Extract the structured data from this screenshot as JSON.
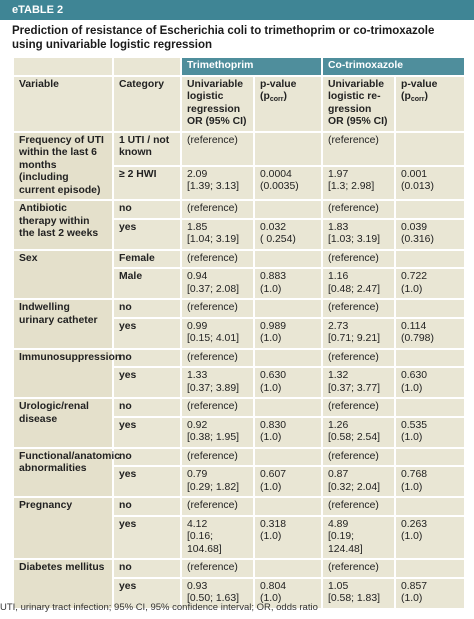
{
  "header": {
    "label": "eTABLE 2",
    "title": "Prediction of resistance of Escherichia coli to trimethoprim or co-trimoxazole using univariable logistic regression"
  },
  "table": {
    "group_headers": [
      "Trimethoprim",
      "Co-trimoxazole"
    ],
    "columns": [
      "Variable",
      "Category",
      "Univariable logistic regression OR (95% CI)",
      {
        "text": "p-value (p",
        "sub": "corr",
        "tail": ")"
      },
      "Univariable logistic re-gression OR (95% CI)",
      {
        "text": "p-value (p",
        "sub": "corr",
        "tail": ")"
      }
    ],
    "groups": [
      {
        "variable": "Frequency of UTI within the last 6 months (including current episode)",
        "rows": [
          [
            "1 UTI / not known",
            "(reference)",
            null,
            "(reference)",
            null
          ],
          [
            "≥ 2 HWI",
            "2.09\n[1.39; 3.13]",
            "0.0004\n(0.0035)",
            "1.97\n[1.3; 2.98]",
            "0.001\n(0.013)"
          ]
        ]
      },
      {
        "variable": "Antibiotic therapy within the last 2 weeks",
        "rows": [
          [
            "no",
            "(reference)",
            null,
            "(reference)",
            null
          ],
          [
            "yes",
            "1.85\n[1.04; 3.19]",
            "0.032\n( 0.254)",
            "1.83\n[1.03; 3.19]",
            "0.039\n(0.316)"
          ]
        ]
      },
      {
        "variable": "Sex",
        "rows": [
          [
            "Female",
            "(reference)",
            null,
            "(reference)",
            null
          ],
          [
            "Male",
            "0.94\n[0.37; 2.08]",
            "0.883\n(1.0)",
            "1.16\n[0.48; 2.47]",
            "0.722\n(1.0)"
          ]
        ]
      },
      {
        "variable": "Indwelling urinary catheter",
        "rows": [
          [
            "no",
            "(reference)",
            null,
            "(reference)",
            null
          ],
          [
            "yes",
            "0.99\n[0.15; 4.01]",
            "0.989\n(1.0)",
            "2.73\n[0.71; 9.21]",
            "0.114\n(0.798)"
          ]
        ]
      },
      {
        "variable": "Immunosuppression",
        "rows": [
          [
            "no",
            "(reference)",
            null,
            "(reference)",
            null
          ],
          [
            "yes",
            "1.33\n[0.37; 3.89]",
            "0.630\n(1.0)",
            "1.32\n[0.37; 3.77]",
            "0.630\n(1.0)"
          ]
        ]
      },
      {
        "variable": "Urologic/renal disease",
        "rows": [
          [
            "no",
            "(reference)",
            null,
            "(reference)",
            null
          ],
          [
            "yes",
            "0.92\n[0.38; 1.95]",
            "0.830\n(1.0)",
            "1.26\n[0.58; 2.54]",
            "0.535\n(1.0)"
          ]
        ]
      },
      {
        "variable": "Functional/anatomic abnormalities",
        "rows": [
          [
            "no",
            "(reference)",
            null,
            "(reference)",
            null
          ],
          [
            "yes",
            "0.79\n[0.29; 1.82]",
            "0.607\n(1.0)",
            "0.87\n[0.32; 2.04]",
            "0.768\n(1.0)"
          ]
        ]
      },
      {
        "variable": "Pregnancy",
        "rows": [
          [
            "no",
            "(reference)",
            null,
            "(reference)",
            null
          ],
          [
            "yes",
            "4.12\n[0.16; 104.68]",
            "0.318\n(1.0)",
            "4.89\n[0.19; 124.48]",
            "0.263\n(1.0)"
          ]
        ]
      },
      {
        "variable": "Diabetes mellitus",
        "rows": [
          [
            "no",
            "(reference)",
            null,
            "(reference)",
            null
          ],
          [
            "yes",
            "0.93\n[0.50; 1.63]",
            "0.804\n(1.0)",
            "1.05\n[0.58; 1.83]",
            "0.857\n(1.0)"
          ]
        ]
      }
    ]
  },
  "footnote": "UTI, urinary tract infection; 95% CI, 95% confidence interval; OR, odds ratio"
}
